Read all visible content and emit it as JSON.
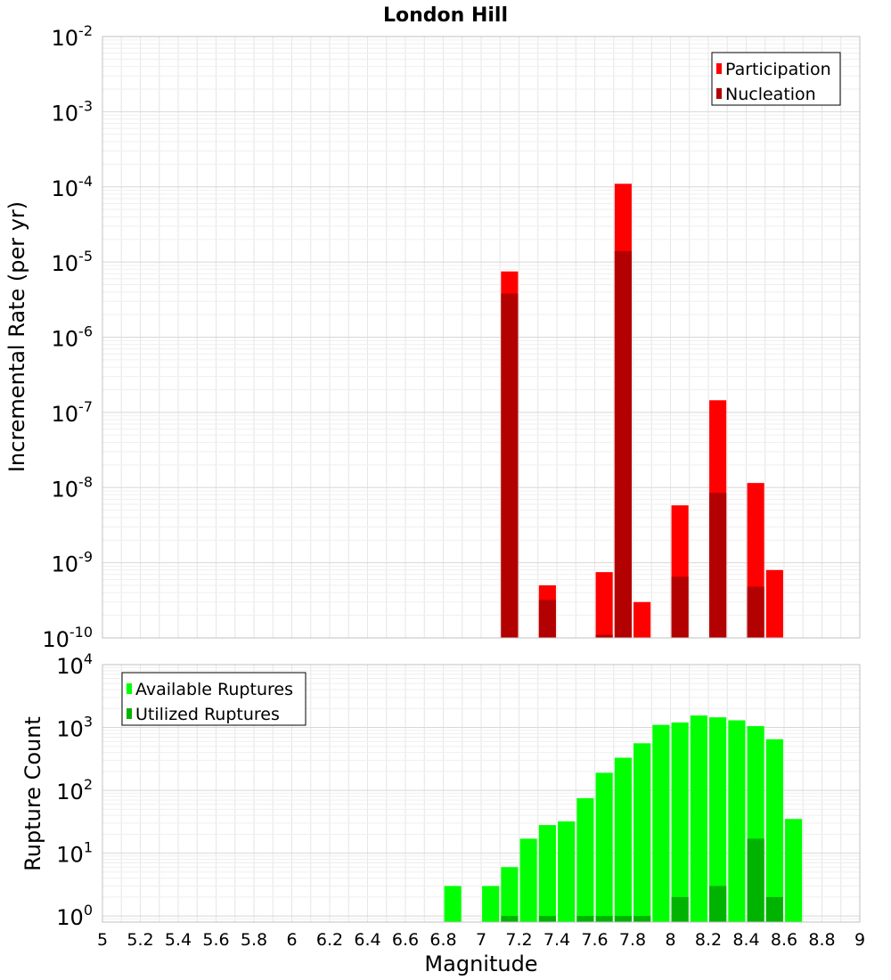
{
  "title": "London Hill",
  "colors": {
    "participation": "#ff0000",
    "nucleation": "#b30000",
    "available": "#00ff00",
    "utilized": "#00b300",
    "grid": "#e6e6e6",
    "frame": "#c0c0c0"
  },
  "chart_data": [
    {
      "type": "bar",
      "panel": "top",
      "ylabel": "Incremental Rate (per yr)",
      "yscale": "log",
      "ylim": [
        1e-10,
        0.01
      ],
      "xlim": [
        5,
        9
      ],
      "grid": true,
      "legend_position": "top-right",
      "y_ticks": [
        {
          "mant": "10",
          "exp": "-10",
          "value": 1e-10
        },
        {
          "mant": "10",
          "exp": "-9",
          "value": 1e-09
        },
        {
          "mant": "10",
          "exp": "-8",
          "value": 1e-08
        },
        {
          "mant": "10",
          "exp": "-7",
          "value": 1e-07
        },
        {
          "mant": "10",
          "exp": "-6",
          "value": 1e-06
        },
        {
          "mant": "10",
          "exp": "-5",
          "value": 1e-05
        },
        {
          "mant": "10",
          "exp": "-4",
          "value": 0.0001
        },
        {
          "mant": "10",
          "exp": "-3",
          "value": 0.001
        },
        {
          "mant": "10",
          "exp": "-2",
          "value": 0.01
        }
      ],
      "series": [
        {
          "name": "Participation",
          "color": "#ff0000",
          "x": [
            7.15,
            7.35,
            7.65,
            7.75,
            7.85,
            8.05,
            8.25,
            8.45,
            8.55
          ],
          "values": [
            7.5e-06,
            5e-10,
            7.5e-10,
            0.00011,
            3e-10,
            5.8e-09,
            1.45e-07,
            1.15e-08,
            8e-10
          ]
        },
        {
          "name": "Nucleation",
          "color": "#b30000",
          "x": [
            7.15,
            7.35,
            7.65,
            7.75,
            8.05,
            8.25,
            8.45
          ],
          "values": [
            3.8e-06,
            3.2e-10,
            1.1e-10,
            1.4e-05,
            6.5e-10,
            8.5e-09,
            4.8e-10
          ]
        }
      ]
    },
    {
      "type": "bar",
      "panel": "bottom",
      "xlabel": "Magnitude",
      "ylabel": "Rupture Count",
      "yscale": "log",
      "ylim": [
        0.8,
        10000
      ],
      "xlim": [
        5,
        9
      ],
      "grid": true,
      "legend_position": "top-left",
      "y_ticks": [
        {
          "mant": "10",
          "exp": "0",
          "value": 1
        },
        {
          "mant": "10",
          "exp": "1",
          "value": 10
        },
        {
          "mant": "10",
          "exp": "2",
          "value": 100
        },
        {
          "mant": "10",
          "exp": "3",
          "value": 1000
        },
        {
          "mant": "10",
          "exp": "4",
          "value": 10000
        }
      ],
      "x_ticks": [
        "5",
        "5.2",
        "5.4",
        "5.6",
        "5.8",
        "6",
        "6.2",
        "6.4",
        "6.6",
        "6.8",
        "7",
        "7.2",
        "7.4",
        "7.6",
        "7.8",
        "8",
        "8.2",
        "8.4",
        "8.6",
        "8.8",
        "9"
      ],
      "series": [
        {
          "name": "Available Ruptures",
          "color": "#00ff00",
          "x": [
            6.85,
            7.05,
            7.15,
            7.25,
            7.35,
            7.45,
            7.55,
            7.65,
            7.75,
            7.85,
            7.95,
            8.05,
            8.15,
            8.25,
            8.35,
            8.45,
            8.55,
            8.65
          ],
          "values": [
            3,
            3,
            6,
            17,
            28,
            32,
            75,
            190,
            330,
            560,
            1100,
            1200,
            1550,
            1450,
            1300,
            1050,
            650,
            35
          ]
        },
        {
          "name": "Utilized Ruptures",
          "color": "#00b300",
          "x": [
            7.15,
            7.35,
            7.55,
            7.65,
            7.75,
            7.85,
            8.05,
            8.25,
            8.45,
            8.55
          ],
          "values": [
            1,
            1,
            1,
            1,
            1,
            1,
            2,
            3,
            17,
            2
          ]
        }
      ]
    }
  ]
}
